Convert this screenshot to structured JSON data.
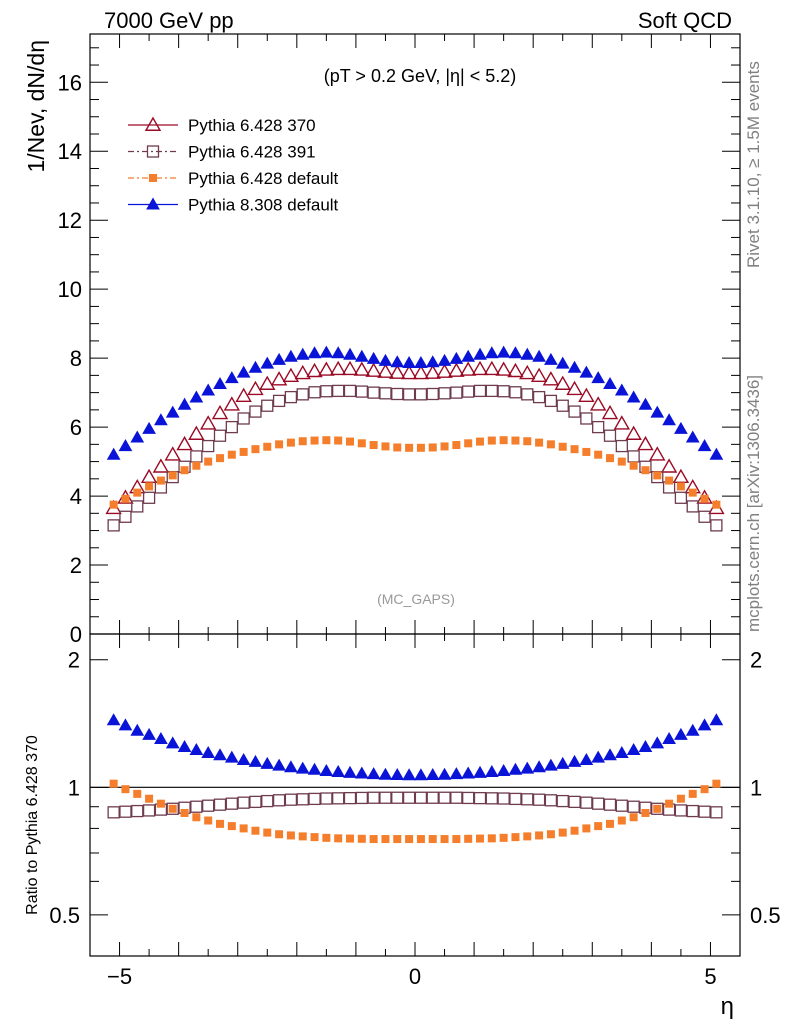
{
  "header": {
    "left": "7000 GeV pp",
    "right": "Soft QCD"
  },
  "side": {
    "rivet": "Rivet 3.1.10, ≥ 1.5M events",
    "mcplots": "mcplots.cern.ch [arXiv:1306.3436]"
  },
  "chart_data": [
    {
      "type": "line",
      "panel": "main",
      "ylabel": "1/Nev, dN/dη",
      "annotation": "(pT > 0.2 GeV, |η| < 5.2)",
      "watermark": "(MC_GAPS)",
      "xlim": [
        -5.5,
        5.5
      ],
      "ylim": [
        0,
        17.4
      ],
      "yticks": [
        0,
        2,
        4,
        6,
        8,
        10,
        12,
        14,
        16
      ],
      "x": [
        -5.1,
        -4.9,
        -4.7,
        -4.5,
        -4.3,
        -4.1,
        -3.9,
        -3.7,
        -3.5,
        -3.3,
        -3.1,
        -2.9,
        -2.7,
        -2.5,
        -2.3,
        -2.1,
        -1.9,
        -1.7,
        -1.5,
        -1.3,
        -1.1,
        -0.9,
        -0.7,
        -0.5,
        -0.3,
        -0.1,
        0.1,
        0.3,
        0.5,
        0.7,
        0.9,
        1.1,
        1.3,
        1.5,
        1.7,
        1.9,
        2.1,
        2.3,
        2.5,
        2.7,
        2.9,
        3.1,
        3.3,
        3.5,
        3.7,
        3.9,
        4.1,
        4.3,
        4.5,
        4.7,
        4.9,
        5.1
      ],
      "series": [
        {
          "name": "Pythia 6.428 370",
          "marker": "open-triangle",
          "color": "#9b0a24",
          "values": [
            3.65,
            3.95,
            4.25,
            4.55,
            4.85,
            5.2,
            5.5,
            5.8,
            6.1,
            6.4,
            6.65,
            6.9,
            7.1,
            7.25,
            7.38,
            7.48,
            7.56,
            7.62,
            7.66,
            7.68,
            7.68,
            7.66,
            7.63,
            7.6,
            7.57,
            7.56,
            7.56,
            7.57,
            7.6,
            7.63,
            7.66,
            7.68,
            7.68,
            7.66,
            7.62,
            7.56,
            7.48,
            7.38,
            7.25,
            7.1,
            6.9,
            6.65,
            6.4,
            6.1,
            5.8,
            5.5,
            5.2,
            4.85,
            4.55,
            4.25,
            3.95,
            3.65
          ]
        },
        {
          "name": "Pythia 6.428 391",
          "marker": "open-square",
          "color": "#6e3b4f",
          "values": [
            3.15,
            3.4,
            3.7,
            3.95,
            4.25,
            4.55,
            4.85,
            5.15,
            5.45,
            5.75,
            6.0,
            6.25,
            6.45,
            6.62,
            6.76,
            6.87,
            6.95,
            7.01,
            7.04,
            7.05,
            7.05,
            7.03,
            7.0,
            6.98,
            6.96,
            6.95,
            6.95,
            6.96,
            6.98,
            7.0,
            7.03,
            7.05,
            7.05,
            7.04,
            7.01,
            6.95,
            6.87,
            6.76,
            6.62,
            6.45,
            6.25,
            6.0,
            5.75,
            5.45,
            5.15,
            4.85,
            4.55,
            4.25,
            3.95,
            3.7,
            3.4,
            3.15
          ]
        },
        {
          "name": "Pythia 6.428 default",
          "marker": "filled-square",
          "color": "#f47e2b",
          "values": [
            3.75,
            3.92,
            4.1,
            4.28,
            4.45,
            4.6,
            4.75,
            4.88,
            5.0,
            5.1,
            5.2,
            5.28,
            5.36,
            5.43,
            5.5,
            5.55,
            5.59,
            5.61,
            5.62,
            5.61,
            5.58,
            5.53,
            5.48,
            5.44,
            5.41,
            5.4,
            5.4,
            5.41,
            5.44,
            5.48,
            5.53,
            5.58,
            5.61,
            5.62,
            5.61,
            5.59,
            5.55,
            5.5,
            5.43,
            5.36,
            5.28,
            5.2,
            5.1,
            5.0,
            4.88,
            4.75,
            4.6,
            4.45,
            4.28,
            4.1,
            3.92,
            3.75
          ]
        },
        {
          "name": "Pythia 8.308 default",
          "marker": "filled-triangle",
          "color": "#0a14d8",
          "values": [
            5.2,
            5.45,
            5.7,
            5.95,
            6.2,
            6.42,
            6.65,
            6.86,
            7.06,
            7.25,
            7.42,
            7.58,
            7.72,
            7.84,
            7.95,
            8.04,
            8.1,
            8.14,
            8.16,
            8.14,
            8.1,
            8.04,
            7.98,
            7.92,
            7.88,
            7.86,
            7.86,
            7.88,
            7.92,
            7.98,
            8.04,
            8.1,
            8.14,
            8.16,
            8.14,
            8.1,
            8.04,
            7.95,
            7.84,
            7.72,
            7.58,
            7.42,
            7.25,
            7.06,
            6.86,
            6.65,
            6.42,
            6.2,
            5.95,
            5.7,
            5.45,
            5.2
          ]
        }
      ]
    },
    {
      "type": "line",
      "panel": "ratio",
      "ylabel": "Ratio to Pythia 6.428 370",
      "xlabel": "η",
      "xlim": [
        -5.5,
        5.5
      ],
      "ylim": [
        0.4,
        2.3
      ],
      "yscale": "log",
      "yticks": [
        0.5,
        1,
        2
      ],
      "xticks": [
        -5,
        0,
        5
      ],
      "reference_line": 1,
      "series": [
        {
          "name": "Pythia 6.428 391",
          "color": "#6e3b4f",
          "values": [
            0.873,
            0.876,
            0.879,
            0.882,
            0.886,
            0.89,
            0.895,
            0.9,
            0.905,
            0.91,
            0.915,
            0.92,
            0.924,
            0.928,
            0.932,
            0.935,
            0.937,
            0.939,
            0.941,
            0.942,
            0.943,
            0.944,
            0.945,
            0.945,
            0.945,
            0.945,
            0.945,
            0.945,
            0.945,
            0.945,
            0.944,
            0.943,
            0.942,
            0.941,
            0.939,
            0.937,
            0.935,
            0.932,
            0.928,
            0.924,
            0.92,
            0.915,
            0.91,
            0.905,
            0.9,
            0.895,
            0.89,
            0.886,
            0.882,
            0.879,
            0.876,
            0.873
          ]
        },
        {
          "name": "Pythia 6.428 default",
          "color": "#f47e2b",
          "values": [
            1.02,
            0.99,
            0.965,
            0.94,
            0.915,
            0.89,
            0.87,
            0.85,
            0.835,
            0.82,
            0.81,
            0.8,
            0.79,
            0.782,
            0.775,
            0.77,
            0.766,
            0.763,
            0.76,
            0.758,
            0.757,
            0.756,
            0.755,
            0.755,
            0.755,
            0.755,
            0.755,
            0.755,
            0.755,
            0.755,
            0.756,
            0.757,
            0.758,
            0.76,
            0.763,
            0.766,
            0.77,
            0.775,
            0.782,
            0.79,
            0.8,
            0.81,
            0.82,
            0.835,
            0.85,
            0.87,
            0.89,
            0.915,
            0.94,
            0.965,
            0.99,
            1.02
          ]
        },
        {
          "name": "Pythia 8.308 default",
          "color": "#0a14d8",
          "values": [
            1.44,
            1.4,
            1.36,
            1.33,
            1.3,
            1.27,
            1.245,
            1.225,
            1.205,
            1.19,
            1.175,
            1.16,
            1.148,
            1.136,
            1.125,
            1.115,
            1.107,
            1.1,
            1.093,
            1.087,
            1.082,
            1.078,
            1.074,
            1.071,
            1.069,
            1.068,
            1.068,
            1.069,
            1.071,
            1.074,
            1.078,
            1.082,
            1.087,
            1.093,
            1.1,
            1.107,
            1.115,
            1.125,
            1.136,
            1.148,
            1.16,
            1.175,
            1.19,
            1.205,
            1.225,
            1.245,
            1.27,
            1.3,
            1.33,
            1.36,
            1.4,
            1.44
          ]
        }
      ]
    }
  ]
}
